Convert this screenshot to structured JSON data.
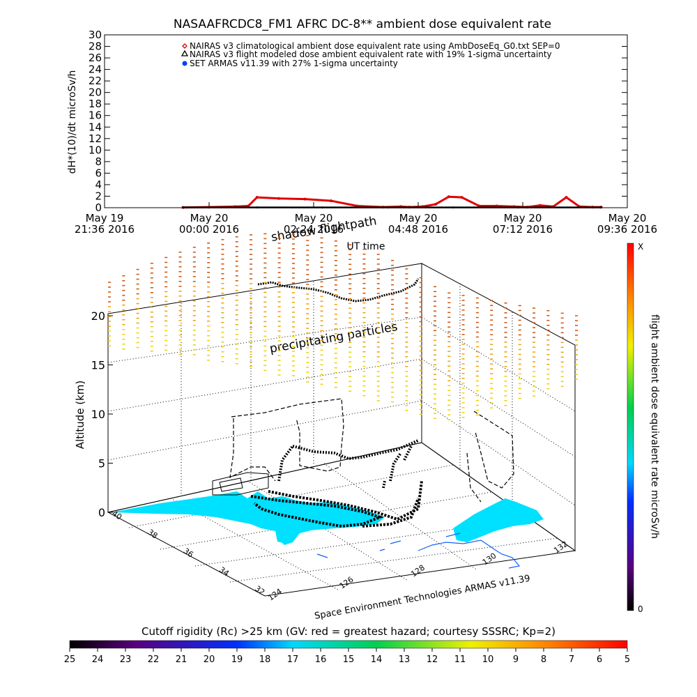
{
  "chart_data": [
    {
      "type": "line",
      "title": "NASAAFRCDC8_FM1 AFRC DC-8** ambient dose equivalent rate",
      "ylabel": "dH*(10)/dt microSv/h",
      "xlabel": "UT time",
      "ylim": [
        0,
        30
      ],
      "yticks": [
        0,
        2,
        4,
        6,
        8,
        10,
        12,
        14,
        16,
        18,
        20,
        22,
        24,
        26,
        28,
        30
      ],
      "xticks": [
        {
          "l1": "May 19",
          "l2": "21:36 2016"
        },
        {
          "l1": "May 20",
          "l2": "00:00 2016"
        },
        {
          "l1": "May 20",
          "l2": "02:24 2016"
        },
        {
          "l1": "May 20",
          "l2": "04:48 2016"
        },
        {
          "l1": "May 20",
          "l2": "07:12 2016"
        },
        {
          "l1": "May 20",
          "l2": "09:36 2016"
        }
      ],
      "x_hours_range": [
        0,
        12
      ],
      "legend": [
        {
          "marker": "diamond",
          "color": "#e00000",
          "text": "NAIRAS v3 climatological ambient dose equivalent rate using AmbDoseEq_G0.txt SEP=0"
        },
        {
          "marker": "triangle",
          "color": "#000000",
          "text": "NAIRAS v3 flight modeled dose ambient equivalent rate with 19% 1-sigma uncertainty"
        },
        {
          "marker": "dot",
          "color": "#0040ff",
          "text": "SET ARMAS v11.39 with 27% 1-sigma uncertainty"
        }
      ],
      "series": [
        {
          "color": "#e00000",
          "x": [
            1.8,
            2.4,
            3.0,
            3.3,
            3.5,
            4.0,
            4.6,
            5.2,
            5.8,
            6.4,
            6.8,
            7.0,
            7.3,
            7.6,
            7.9,
            8.2,
            8.6,
            9.0,
            9.4,
            9.7,
            10.0,
            10.3,
            10.6,
            10.9,
            11.2,
            11.4
          ],
          "values": [
            0.05,
            0.1,
            0.2,
            0.3,
            1.8,
            1.6,
            1.5,
            1.2,
            0.3,
            0.1,
            0.2,
            0.1,
            0.2,
            0.6,
            1.9,
            1.8,
            0.3,
            0.3,
            0.2,
            0.1,
            0.4,
            0.2,
            1.8,
            0.2,
            0.1,
            0.1
          ]
        },
        {
          "color": "#000000",
          "x": [
            1.8,
            3.5,
            5.0,
            6.5,
            8.0,
            9.5,
            11.4
          ],
          "values": [
            0.05,
            0.05,
            0.05,
            0.05,
            0.05,
            0.05,
            0.05
          ]
        }
      ]
    },
    {
      "type": "scatter",
      "zlabel": "Altitude (km)",
      "zticks": [
        0,
        5,
        10,
        15,
        20
      ],
      "lat_ticks": [
        "40",
        "38",
        "36",
        "34",
        "32"
      ],
      "lon_ticks": [
        "124",
        "126",
        "128",
        "130",
        "132"
      ],
      "annotations": [
        "shadow flightpath",
        "precipitating particles"
      ],
      "credit": "Space Environment Technologies ARMAS v11.39"
    }
  ],
  "colorbar_right": {
    "label": "flight ambient dose equivalent rate microSv/h",
    "top": "X",
    "bottom": "0"
  },
  "colorbar_bottom": {
    "label": "Cutoff rigidity (Rc) >25 km (GV: red = greatest hazard; courtesy SSSRC; Kp=2)",
    "ticks": [
      "25",
      "24",
      "23",
      "22",
      "21",
      "20",
      "19",
      "18",
      "17",
      "16",
      "15",
      "14",
      "13",
      "12",
      "11",
      "10",
      "9",
      "8",
      "7",
      "6",
      "5"
    ]
  }
}
